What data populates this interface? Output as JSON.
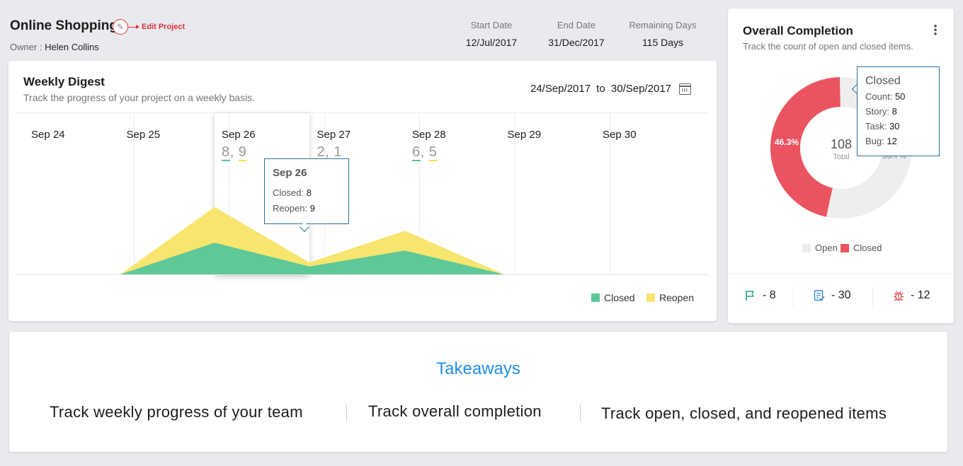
{
  "project": {
    "title": "Online Shopping",
    "edit_label": "Edit Project",
    "owner_label": "Owner :",
    "owner_name": "Helen Collins",
    "start_label": "Start Date",
    "start_value": "12/Jul/2017",
    "end_label": "End Date",
    "end_value": "31/Dec/2017",
    "remaining_label": "Remaining Days",
    "remaining_value": "115 Days"
  },
  "digest": {
    "title": "Weekly Digest",
    "subtitle": "Track the progress of your project on a weekly basis.",
    "range_from": "24/Sep/2017",
    "range_to_word": "to",
    "range_to": "30/Sep/2017",
    "days": [
      {
        "label": "Sep 24",
        "closed": "",
        "reopen": ""
      },
      {
        "label": "Sep 25",
        "closed": "",
        "reopen": ""
      },
      {
        "label": "Sep 26",
        "closed": "8",
        "reopen": "9"
      },
      {
        "label": "Sep 27",
        "closed": "2",
        "reopen": "1"
      },
      {
        "label": "Sep 28",
        "closed": "6",
        "reopen": "5"
      },
      {
        "label": "Sep 29",
        "closed": "",
        "reopen": ""
      },
      {
        "label": "Sep 30",
        "closed": "",
        "reopen": ""
      }
    ],
    "tooltip": {
      "title": "Sep 26",
      "closed_label": "Closed:",
      "closed_value": "8",
      "reopen_label": "Reopen:",
      "reopen_value": "9"
    },
    "legend_closed": "Closed",
    "legend_reopen": "Reopen",
    "colors": {
      "closed": "#5fc898",
      "reopen": "#f7e56f"
    }
  },
  "chart_data": {
    "type": "area",
    "categories": [
      "Sep 24",
      "Sep 25",
      "Sep 26",
      "Sep 27",
      "Sep 28",
      "Sep 29",
      "Sep 30"
    ],
    "series": [
      {
        "name": "Closed",
        "values": [
          0,
          0,
          8,
          2,
          6,
          0,
          0
        ]
      },
      {
        "name": "Reopen",
        "values": [
          0,
          0,
          9,
          1,
          5,
          0,
          0
        ]
      }
    ],
    "stacked": true
  },
  "completion": {
    "title": "Overall Completion",
    "subtitle": "Track the count of open and closed items.",
    "total": "108",
    "total_label": "Total",
    "closed_pct": "46.3%",
    "open_pct": "53.7%",
    "closed_fraction": 0.463,
    "tooltip": {
      "title": "Closed",
      "count_label": "Count:",
      "count_value": "50",
      "story_label": "Story:",
      "story_value": "8",
      "task_label": "Task:",
      "task_value": "30",
      "bug_label": "Bug:",
      "bug_value": "12"
    },
    "legend_open": "Open",
    "legend_closed": "Closed",
    "colors": {
      "open": "#eeeeef",
      "closed": "#ea5460"
    },
    "stats": [
      {
        "icon": "flag-icon",
        "value": "- 8"
      },
      {
        "icon": "task-icon",
        "value": "- 30"
      },
      {
        "icon": "bug-icon",
        "value": "- 12"
      }
    ]
  },
  "takeaways": {
    "title": "Takeaways",
    "items": [
      "Track weekly progress of your team",
      "Track overall completion",
      "Track open, closed, and reopened items"
    ]
  }
}
